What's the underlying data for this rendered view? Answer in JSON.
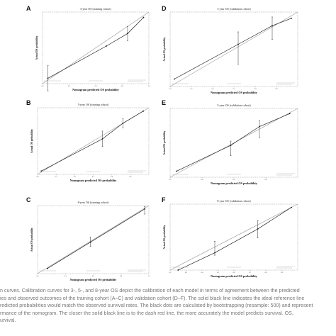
{
  "caption": "n curves. Calibration curves for 3-, 5-, and 8-year OS depict the calibration of each model in terms of agreement between the predicted\nies and observed outcomes of the training cohort (A–C) and validation cohort (D–F). The solid black line indicates the ideal reference line\nredicted probabilities would match the observed survival rates. The black dots are calculated by bootstrapping (resample: 500) and represent\nrmance of the nomogram. The closer the solid black line is to the dash red line, the more accurately the model predicts survival. OS,\nurvival.",
  "colors": {
    "ideal_line": "#999999",
    "calibration": "#222222",
    "points": "#111111"
  },
  "chart_data": [
    {
      "panel": "A",
      "type": "line",
      "title": "3-year OS (training cohort)",
      "xlabel": "Nomogram predicted OS probability",
      "ylabel": "Actual OS probability",
      "xlim": [
        0.6,
        1.0
      ],
      "ylim": [
        0.6,
        1.0
      ],
      "x_ticks": [
        "0.6",
        "0.7",
        "0.8",
        "0.9",
        "1.0"
      ],
      "series": [
        {
          "role": "ideal",
          "x": [
            0.6,
            1.0
          ],
          "y": [
            0.6,
            1.0
          ]
        },
        {
          "role": "calibration",
          "x": [
            0.62,
            0.84,
            0.92,
            0.98
          ],
          "y": [
            0.63,
            0.81,
            0.88,
            0.97
          ]
        }
      ],
      "error_bars": [
        {
          "x": 0.62,
          "lo": 0.56,
          "hi": 0.7
        },
        {
          "x": 0.92,
          "lo": 0.84,
          "hi": 0.92
        }
      ]
    },
    {
      "panel": "B",
      "type": "line",
      "title": "5-year OS (training cohort)",
      "xlabel": "Nomogram predicted OS probability",
      "ylabel": "Actual OS probability",
      "xlim": [
        0.4,
        1.0
      ],
      "ylim": [
        0.4,
        1.0
      ],
      "x_ticks": [
        "0.4",
        "0.5",
        "0.6",
        "0.7",
        "0.8",
        "0.9"
      ],
      "series": [
        {
          "role": "ideal",
          "x": [
            0.4,
            1.0
          ],
          "y": [
            0.4,
            1.0
          ]
        },
        {
          "role": "calibration",
          "x": [
            0.42,
            0.75,
            0.86,
            0.97
          ],
          "y": [
            0.43,
            0.72,
            0.86,
            0.97
          ]
        }
      ],
      "error_bars": [
        {
          "x": 0.75,
          "lo": 0.65,
          "hi": 0.79
        },
        {
          "x": 0.86,
          "lo": 0.82,
          "hi": 0.9
        }
      ]
    },
    {
      "panel": "C",
      "type": "line",
      "title": "8-year OS (training cohort)",
      "xlabel": "Nomogram predicted OS probability",
      "ylabel": "Actual OS probability",
      "xlim": [
        0.2,
        1.0
      ],
      "ylim": [
        0.2,
        1.0
      ],
      "x_ticks": [
        "0.2",
        "0.4",
        "0.6",
        "0.8",
        "1.0"
      ],
      "series": [
        {
          "role": "ideal",
          "x": [
            0.2,
            1.0
          ],
          "y": [
            0.2,
            1.0
          ]
        },
        {
          "role": "calibration",
          "x": [
            0.27,
            0.58,
            0.97
          ],
          "y": [
            0.26,
            0.57,
            0.96
          ]
        }
      ],
      "error_bars": [
        {
          "x": 0.58,
          "lo": 0.52,
          "hi": 0.63
        },
        {
          "x": 0.97,
          "lo": 0.9,
          "hi": 0.99
        }
      ]
    },
    {
      "panel": "D",
      "type": "line",
      "title": "3-year OS (validation cohort)",
      "xlabel": "Nomogram predicted OS probability",
      "ylabel": "Actual OS probability",
      "xlim": [
        0.4,
        1.0
      ],
      "ylim": [
        0.4,
        1.0
      ],
      "x_ticks": [
        "0.4",
        "0.5",
        "0.6",
        "0.7",
        "0.8",
        "0.9"
      ],
      "series": [
        {
          "role": "ideal",
          "x": [
            0.4,
            1.0
          ],
          "y": [
            0.4,
            1.0
          ]
        },
        {
          "role": "calibration",
          "x": [
            0.42,
            0.72,
            0.88,
            0.97
          ],
          "y": [
            0.46,
            0.74,
            0.89,
            0.95
          ]
        }
      ],
      "error_bars": [
        {
          "x": 0.72,
          "lo": 0.58,
          "hi": 0.84
        },
        {
          "x": 0.88,
          "lo": 0.78,
          "hi": 0.96
        }
      ]
    },
    {
      "panel": "E",
      "type": "line",
      "title": "5-year OS (validation cohort)",
      "xlabel": "Nomogram predicted OS probability",
      "ylabel": "Actual OS probability",
      "xlim": [
        0.2,
        1.0
      ],
      "ylim": [
        0.2,
        1.0
      ],
      "x_ticks": [
        "0.2",
        "0.4",
        "0.6",
        "0.8"
      ],
      "series": [
        {
          "role": "ideal",
          "x": [
            0.2,
            1.0
          ],
          "y": [
            0.2,
            1.0
          ]
        },
        {
          "role": "calibration",
          "x": [
            0.24,
            0.58,
            0.76,
            0.95
          ],
          "y": [
            0.27,
            0.57,
            0.79,
            0.94
          ]
        }
      ],
      "error_bars": [
        {
          "x": 0.58,
          "lo": 0.45,
          "hi": 0.62
        },
        {
          "x": 0.76,
          "lo": 0.66,
          "hi": 0.86
        }
      ]
    },
    {
      "panel": "F",
      "type": "line",
      "title": "8-year OS (validation cohort)",
      "xlabel": "Nomogram predicted OS probability",
      "ylabel": "Actual OS probability",
      "xlim": [
        0.2,
        1.0
      ],
      "ylim": [
        0.2,
        1.0
      ],
      "x_ticks": [
        "0.2",
        "0.3",
        "0.4",
        "0.5",
        "0.6",
        "0.7",
        "0.8",
        "0.9"
      ],
      "series": [
        {
          "role": "ideal",
          "x": [
            0.2,
            1.0
          ],
          "y": [
            0.2,
            1.0
          ]
        },
        {
          "role": "calibration",
          "x": [
            0.25,
            0.48,
            0.75,
            0.96
          ],
          "y": [
            0.2,
            0.41,
            0.7,
            0.96
          ]
        }
      ],
      "error_bars": [
        {
          "x": 0.48,
          "lo": 0.38,
          "hi": 0.55
        },
        {
          "x": 0.75,
          "lo": 0.59,
          "hi": 0.8
        }
      ]
    }
  ]
}
